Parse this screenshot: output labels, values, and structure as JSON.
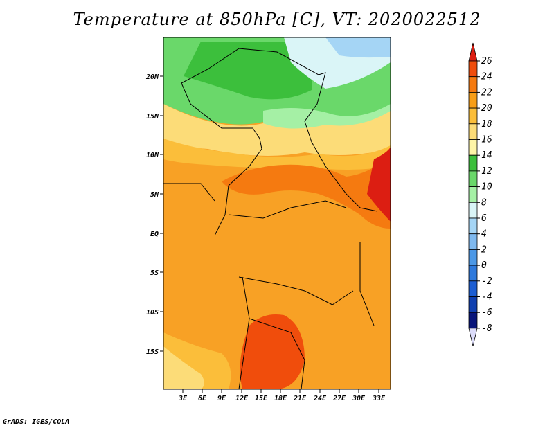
{
  "title": "Temperature at 850hPa [C], VT: 2020022512",
  "credit": "GrADS: IGES/COLA",
  "map": {
    "lat_labels": [
      "20N",
      "15N",
      "10N",
      "5N",
      "EQ",
      "5S",
      "10S",
      "15S"
    ],
    "lon_labels": [
      "3E",
      "6E",
      "9E",
      "12E",
      "15E",
      "18E",
      "21E",
      "24E",
      "27E",
      "30E",
      "33E"
    ]
  },
  "colorbar": {
    "levels": [
      "26",
      "24",
      "22",
      "20",
      "18",
      "16",
      "14",
      "12",
      "10",
      "8",
      "6",
      "4",
      "2",
      "0",
      "-2",
      "-4",
      "-6",
      "-8"
    ],
    "colors": [
      "#dc1e12",
      "#f04d0c",
      "#f57a10",
      "#f89e17",
      "#fbbe3a",
      "#fcdc78",
      "#fef5a8",
      "#3cbf3c",
      "#6ad86a",
      "#a5f0a5",
      "#daf5f7",
      "#a5d5f5",
      "#7fb9ef",
      "#4c98e6",
      "#2e79dc",
      "#1d5ed2",
      "#1040b0",
      "#08157a",
      "#dcdcfa"
    ]
  }
}
